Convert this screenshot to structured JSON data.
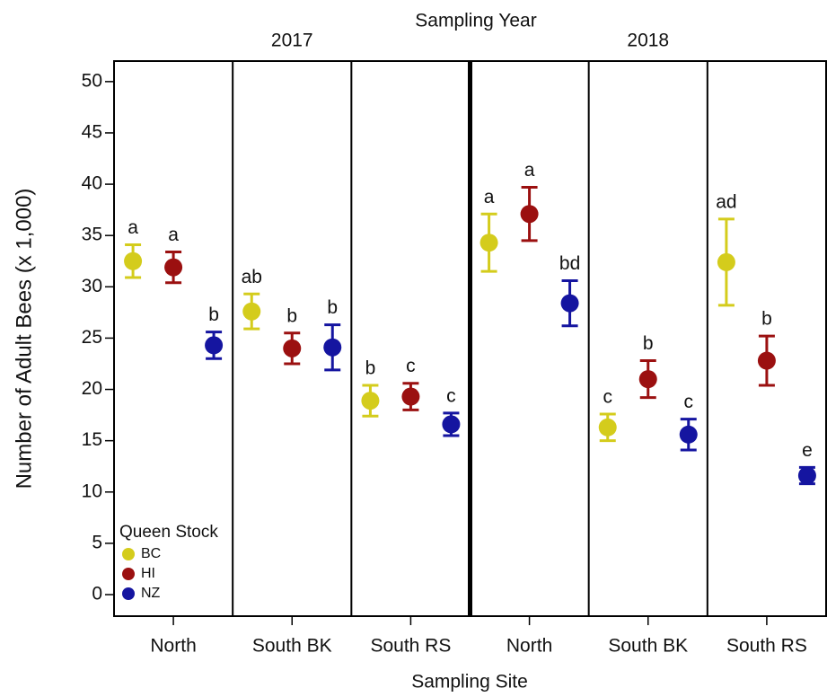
{
  "chart_data": {
    "type": "scatter",
    "title": "Sampling Year",
    "x_label": "Sampling Site",
    "y_label": "Number of Adult Bees (x 1,000)",
    "categories": [
      "North",
      "South BK",
      "South RS",
      "North",
      "South BK",
      "South RS"
    ],
    "groups": [
      {
        "label": "2017",
        "start": 0,
        "end": 2
      },
      {
        "label": "2018",
        "start": 3,
        "end": 5
      }
    ],
    "ylim": [
      -2.1,
      52
    ],
    "yticks": [
      0,
      5,
      10,
      15,
      20,
      25,
      30,
      35,
      40,
      45,
      50
    ],
    "legend_title": "Queen Stock",
    "legend": "bottom-left",
    "series": [
      {
        "name": "BC",
        "color": "#d4cc1c",
        "values": [
          32.5,
          27.6,
          18.9,
          34.3,
          16.3,
          32.4
        ],
        "errors": [
          1.6,
          1.7,
          1.5,
          2.8,
          1.3,
          4.2
        ],
        "letters": [
          "a",
          "ab",
          "b",
          "a",
          "c",
          "ad"
        ]
      },
      {
        "name": "HI",
        "color": "#9b1010",
        "values": [
          31.9,
          24.0,
          19.3,
          37.1,
          21.0,
          22.8
        ],
        "errors": [
          1.5,
          1.5,
          1.3,
          2.6,
          1.8,
          2.4
        ],
        "letters": [
          "a",
          "b",
          "c",
          "a",
          "b",
          "b"
        ]
      },
      {
        "name": "NZ",
        "color": "#1515a0",
        "values": [
          24.3,
          24.1,
          16.6,
          28.4,
          15.6,
          11.6
        ],
        "errors": [
          1.3,
          2.2,
          1.1,
          2.2,
          1.5,
          0.8
        ],
        "letters": [
          "b",
          "b",
          "c",
          "bd",
          "c",
          "e"
        ]
      }
    ]
  }
}
